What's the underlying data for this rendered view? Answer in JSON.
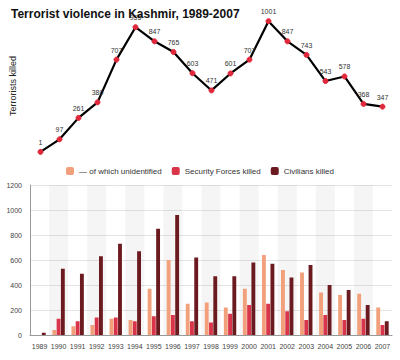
{
  "chart_data": [
    {
      "type": "line",
      "title": "Terrorist violence in Kashmir, 1989-2007",
      "ylabel": "Terrorists killed",
      "categories": [
        "1989",
        "1990",
        "1991",
        "1992",
        "1993",
        "1994",
        "1995",
        "1996",
        "1997",
        "1998",
        "1999",
        "2000",
        "2001",
        "2002",
        "2003",
        "2004",
        "2005",
        "2006",
        "2007"
      ],
      "values": [
        1,
        97,
        261,
        380,
        707,
        955,
        847,
        765,
        603,
        471,
        601,
        707,
        1001,
        847,
        743,
        543,
        578,
        368,
        347
      ],
      "color": "#000000",
      "marker": "circle",
      "ylim": [
        0,
        1010
      ],
      "data_labels": true,
      "tick_labels": false
    },
    {
      "type": "bar",
      "categories": [
        "1989",
        "1990",
        "1991",
        "1992",
        "1993",
        "1994",
        "1995",
        "1996",
        "1997",
        "1998",
        "1999",
        "2000",
        "2001",
        "2002",
        "2003",
        "2004",
        "2005",
        "2006",
        "2007"
      ],
      "series": [
        {
          "name": "— of which unidentified",
          "color": "#f2a07b",
          "values": [
            0,
            40,
            70,
            80,
            130,
            120,
            370,
            600,
            250,
            260,
            220,
            370,
            640,
            520,
            500,
            340,
            320,
            330,
            220
          ]
        },
        {
          "name": "Security Forces killed",
          "color": "#d9354a",
          "values": [
            0,
            130,
            110,
            140,
            140,
            110,
            150,
            160,
            110,
            100,
            170,
            240,
            250,
            190,
            120,
            160,
            120,
            130,
            80
          ]
        },
        {
          "name": "Civilians killed",
          "color": "#6b1a1f",
          "values": [
            19,
            530,
            490,
            630,
            730,
            670,
            850,
            960,
            620,
            470,
            470,
            580,
            570,
            460,
            560,
            400,
            360,
            240,
            110
          ]
        }
      ],
      "ylim": [
        0,
        1200
      ],
      "yticks": [
        0,
        200,
        400,
        600,
        800,
        1000,
        1200
      ],
      "grid": true,
      "legend": "top"
    }
  ]
}
